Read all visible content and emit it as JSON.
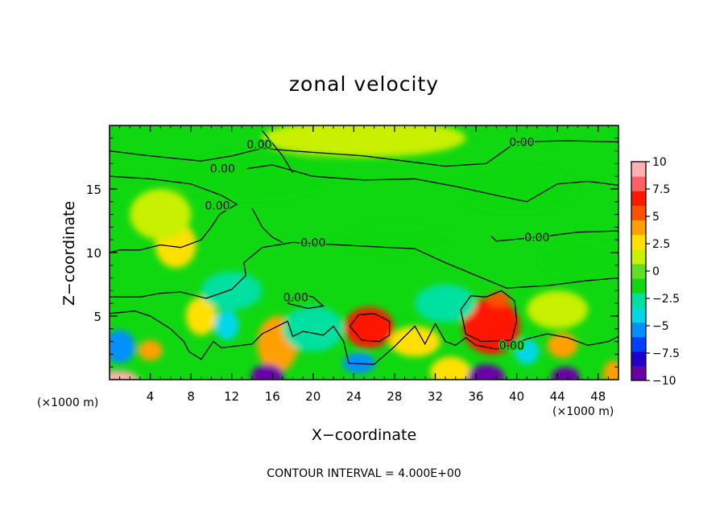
{
  "chart_data": {
    "type": "heatmap",
    "title": "zonal velocity",
    "xlabel": "X−coordinate",
    "ylabel": "Z−coordinate",
    "x_unit_left": "(×1000 m)",
    "x_unit_right": "(×1000 m)",
    "footer": "CONTOUR INTERVAL = 4.000E+00",
    "xlim": [
      0,
      50
    ],
    "ylim": [
      0,
      20
    ],
    "x_ticks": [
      4,
      8,
      12,
      16,
      20,
      24,
      28,
      32,
      36,
      40,
      44,
      48
    ],
    "y_ticks": [
      5,
      10,
      15
    ],
    "colorbar": {
      "range": [
        -10,
        10
      ],
      "ticks": [
        10,
        7.5,
        5,
        2.5,
        0,
        -2.5,
        -5,
        -7.5,
        -10
      ],
      "tick_labels": [
        "10",
        "7.5",
        "5",
        "2.5",
        "0",
        "−2.5",
        "−5",
        "−7.5",
        "−10"
      ],
      "colors": [
        "#6a00a8",
        "#2000c8",
        "#0040ff",
        "#0090ff",
        "#00d8e8",
        "#00e0a0",
        "#10d810",
        "#60e020",
        "#c8f000",
        "#ffe000",
        "#ffa000",
        "#ff5000",
        "#ff1800",
        "#ff6060",
        "#ffb0b0"
      ]
    },
    "contour_labels": [
      {
        "text": "0.00",
        "x": 14.7,
        "z": 18.5
      },
      {
        "text": "0.00",
        "x": 11.1,
        "z": 16.6
      },
      {
        "text": "0.00",
        "x": 40.5,
        "z": 18.7
      },
      {
        "text": "0.00",
        "x": 10.6,
        "z": 13.7
      },
      {
        "text": "0.00",
        "x": 20.0,
        "z": 10.8
      },
      {
        "text": "0.00",
        "x": 42.0,
        "z": 11.2
      },
      {
        "text": "0.00",
        "x": 18.3,
        "z": 6.5
      },
      {
        "text": "0.00",
        "x": 39.5,
        "z": 2.7
      }
    ],
    "blobs": [
      {
        "x": 0.8,
        "z": -0.2,
        "rx": 2.2,
        "rz": 0.9,
        "v": 10
      },
      {
        "x": 25.5,
        "z": 4.1,
        "rx": 2.4,
        "rz": 1.6,
        "v": 6.5
      },
      {
        "x": 37.5,
        "z": 4.2,
        "rx": 2.8,
        "rz": 2.2,
        "v": 6
      },
      {
        "x": 38.2,
        "z": 6.3,
        "rx": 1.1,
        "rz": 0.6,
        "v": 5
      },
      {
        "x": 16.5,
        "z": 2.8,
        "rx": 2.0,
        "rz": 2.2,
        "v": 4
      },
      {
        "x": 44.5,
        "z": 2.7,
        "rx": 1.5,
        "rz": 1.0,
        "v": 4.5
      },
      {
        "x": 4.0,
        "z": 2.3,
        "rx": 1.2,
        "rz": 0.8,
        "v": 4
      },
      {
        "x": 30.0,
        "z": 3.0,
        "rx": 2.5,
        "rz": 1.2,
        "v": 2
      },
      {
        "x": 9.0,
        "z": 5.0,
        "rx": 1.5,
        "rz": 1.5,
        "v": 2
      },
      {
        "x": 6.5,
        "z": 10.6,
        "rx": 2.0,
        "rz": 1.8,
        "v": 2
      },
      {
        "x": 33.5,
        "z": 0.6,
        "rx": 2.0,
        "rz": 1.2,
        "v": 3
      },
      {
        "x": 49.5,
        "z": 0.5,
        "rx": 1.0,
        "rz": 1.0,
        "v": 4
      },
      {
        "x": 15.5,
        "z": 0.3,
        "rx": 1.6,
        "rz": 0.9,
        "v": -9
      },
      {
        "x": 37.0,
        "z": 0.2,
        "rx": 1.8,
        "rz": 1.0,
        "v": -10
      },
      {
        "x": 44.8,
        "z": 0.2,
        "rx": 1.4,
        "rz": 0.8,
        "v": -10
      },
      {
        "x": 1.0,
        "z": 2.6,
        "rx": 1.5,
        "rz": 1.3,
        "v": -5
      },
      {
        "x": 11.5,
        "z": 4.3,
        "rx": 1.2,
        "rz": 1.2,
        "v": -4
      },
      {
        "x": 24.5,
        "z": 1.3,
        "rx": 1.6,
        "rz": 0.8,
        "v": -5
      },
      {
        "x": 41.0,
        "z": 2.2,
        "rx": 1.2,
        "rz": 1.0,
        "v": -4
      },
      {
        "x": 20.0,
        "z": 4.0,
        "rx": 3.0,
        "rz": 1.8,
        "v": -2.5
      },
      {
        "x": 33.0,
        "z": 6.0,
        "rx": 3.0,
        "rz": 1.5,
        "v": -2.2
      },
      {
        "x": 12.0,
        "z": 7.0,
        "rx": 3.0,
        "rz": 1.5,
        "v": -2.2
      },
      {
        "x": 28.0,
        "z": 11.0,
        "rx": 6.0,
        "rz": 1.2,
        "v": -2.0
      },
      {
        "x": 14.0,
        "z": 16.0,
        "rx": 8.0,
        "rz": 2.0,
        "v": -1.0
      },
      {
        "x": 40.0,
        "z": 15.0,
        "rx": 6.0,
        "rz": 2.0,
        "v": -1.2
      },
      {
        "x": 46.0,
        "z": 9.5,
        "rx": 4.0,
        "rz": 1.5,
        "v": -1.5
      },
      {
        "x": 5.0,
        "z": 13.0,
        "rx": 3.0,
        "rz": 2.0,
        "v": 1.2
      },
      {
        "x": 25.0,
        "z": 19.0,
        "rx": 10.0,
        "rz": 1.5,
        "v": 0.8
      },
      {
        "x": 44.0,
        "z": 5.5,
        "rx": 3.0,
        "rz": 1.5,
        "v": 1.5
      }
    ],
    "contours": [
      [
        [
          0,
          18.0
        ],
        [
          4,
          17.6
        ],
        [
          9,
          17.2
        ],
        [
          12,
          17.6
        ],
        [
          15,
          18.2
        ],
        [
          18,
          18.0
        ],
        [
          25,
          17.6
        ],
        [
          33,
          16.8
        ],
        [
          37,
          17.0
        ],
        [
          40,
          18.7
        ],
        [
          45,
          18.8
        ],
        [
          50,
          18.7
        ]
      ],
      [
        [
          0,
          16.0
        ],
        [
          4,
          15.8
        ],
        [
          8,
          15.4
        ],
        [
          11,
          14.5
        ],
        [
          12.5,
          13.8
        ],
        [
          10.8,
          13.0
        ],
        [
          10,
          12.0
        ],
        [
          9,
          11.0
        ],
        [
          7,
          10.4
        ],
        [
          5,
          10.6
        ],
        [
          3,
          10.2
        ],
        [
          1,
          10.2
        ],
        [
          0,
          10.0
        ]
      ],
      [
        [
          15,
          19.6
        ],
        [
          17,
          17.6
        ],
        [
          18,
          16.3
        ]
      ],
      [
        [
          13.5,
          16.6
        ],
        [
          16,
          16.9
        ],
        [
          20,
          16.0
        ],
        [
          25,
          15.7
        ],
        [
          30,
          15.8
        ],
        [
          34,
          15.2
        ],
        [
          38,
          14.5
        ],
        [
          41,
          14.0
        ],
        [
          44,
          15.4
        ],
        [
          47,
          15.6
        ],
        [
          50,
          15.3
        ]
      ],
      [
        [
          14,
          13.5
        ],
        [
          15,
          12.0
        ],
        [
          16,
          11.2
        ],
        [
          17,
          10.8
        ]
      ],
      [
        [
          50,
          11.7
        ],
        [
          46,
          11.6
        ],
        [
          42,
          11.2
        ],
        [
          38,
          10.9
        ],
        [
          37.5,
          11.3
        ]
      ],
      [
        [
          50,
          8.0
        ],
        [
          47,
          7.8
        ],
        [
          43,
          7.4
        ],
        [
          39,
          7.2
        ],
        [
          36,
          8.2
        ],
        [
          33,
          9.2
        ],
        [
          30,
          10.3
        ],
        [
          25,
          10.5
        ],
        [
          18,
          10.8
        ],
        [
          15,
          10.4
        ],
        [
          13.2,
          9.2
        ],
        [
          13.4,
          8.2
        ],
        [
          12,
          7.1
        ],
        [
          9.5,
          6.4
        ],
        [
          7,
          6.9
        ],
        [
          5,
          6.8
        ],
        [
          3,
          6.5
        ],
        [
          0,
          6.5
        ]
      ],
      [
        [
          0,
          5.2
        ],
        [
          2.5,
          5.4
        ],
        [
          4,
          5.0
        ],
        [
          6,
          4.0
        ],
        [
          7.3,
          3.0
        ],
        [
          7.8,
          2.2
        ],
        [
          9,
          1.6
        ],
        [
          10.2,
          3.0
        ],
        [
          11,
          2.5
        ],
        [
          14,
          2.8
        ],
        [
          15,
          3.6
        ],
        [
          17.5,
          4.6
        ],
        [
          18,
          3.4
        ],
        [
          19,
          3.8
        ],
        [
          21,
          3.5
        ],
        [
          22,
          4.2
        ],
        [
          23,
          3.0
        ],
        [
          23.5,
          1.3
        ],
        [
          26,
          1.2
        ],
        [
          28,
          2.6
        ],
        [
          30,
          4.2
        ],
        [
          31,
          2.8
        ],
        [
          32,
          4.4
        ],
        [
          33,
          3.0
        ],
        [
          34,
          2.7
        ],
        [
          35,
          3.3
        ],
        [
          36,
          2.7
        ],
        [
          38,
          2.4
        ],
        [
          39.5,
          2.7
        ],
        [
          41,
          3.2
        ],
        [
          43,
          3.6
        ],
        [
          45,
          3.3
        ],
        [
          47,
          2.7
        ],
        [
          49,
          3.0
        ],
        [
          50,
          3.4
        ]
      ],
      [
        [
          23.6,
          4.2
        ],
        [
          24.5,
          5.1
        ],
        [
          26,
          5.2
        ],
        [
          27.5,
          4.6
        ],
        [
          27.5,
          3.5
        ],
        [
          26.5,
          3.0
        ],
        [
          24.8,
          3.1
        ],
        [
          23.6,
          4.2
        ]
      ],
      [
        [
          34.5,
          5.5
        ],
        [
          35.5,
          6.6
        ],
        [
          37,
          6.5
        ],
        [
          38.5,
          7.0
        ],
        [
          39.8,
          6.2
        ],
        [
          40,
          4.6
        ],
        [
          39.5,
          3.1
        ],
        [
          36.5,
          3.0
        ],
        [
          35,
          3.6
        ],
        [
          34.5,
          5.5
        ]
      ],
      [
        [
          17.5,
          6.0
        ],
        [
          18.5,
          6.8
        ],
        [
          20,
          6.5
        ],
        [
          21,
          5.8
        ],
        [
          19.5,
          5.6
        ],
        [
          17.5,
          6.0
        ]
      ]
    ]
  }
}
